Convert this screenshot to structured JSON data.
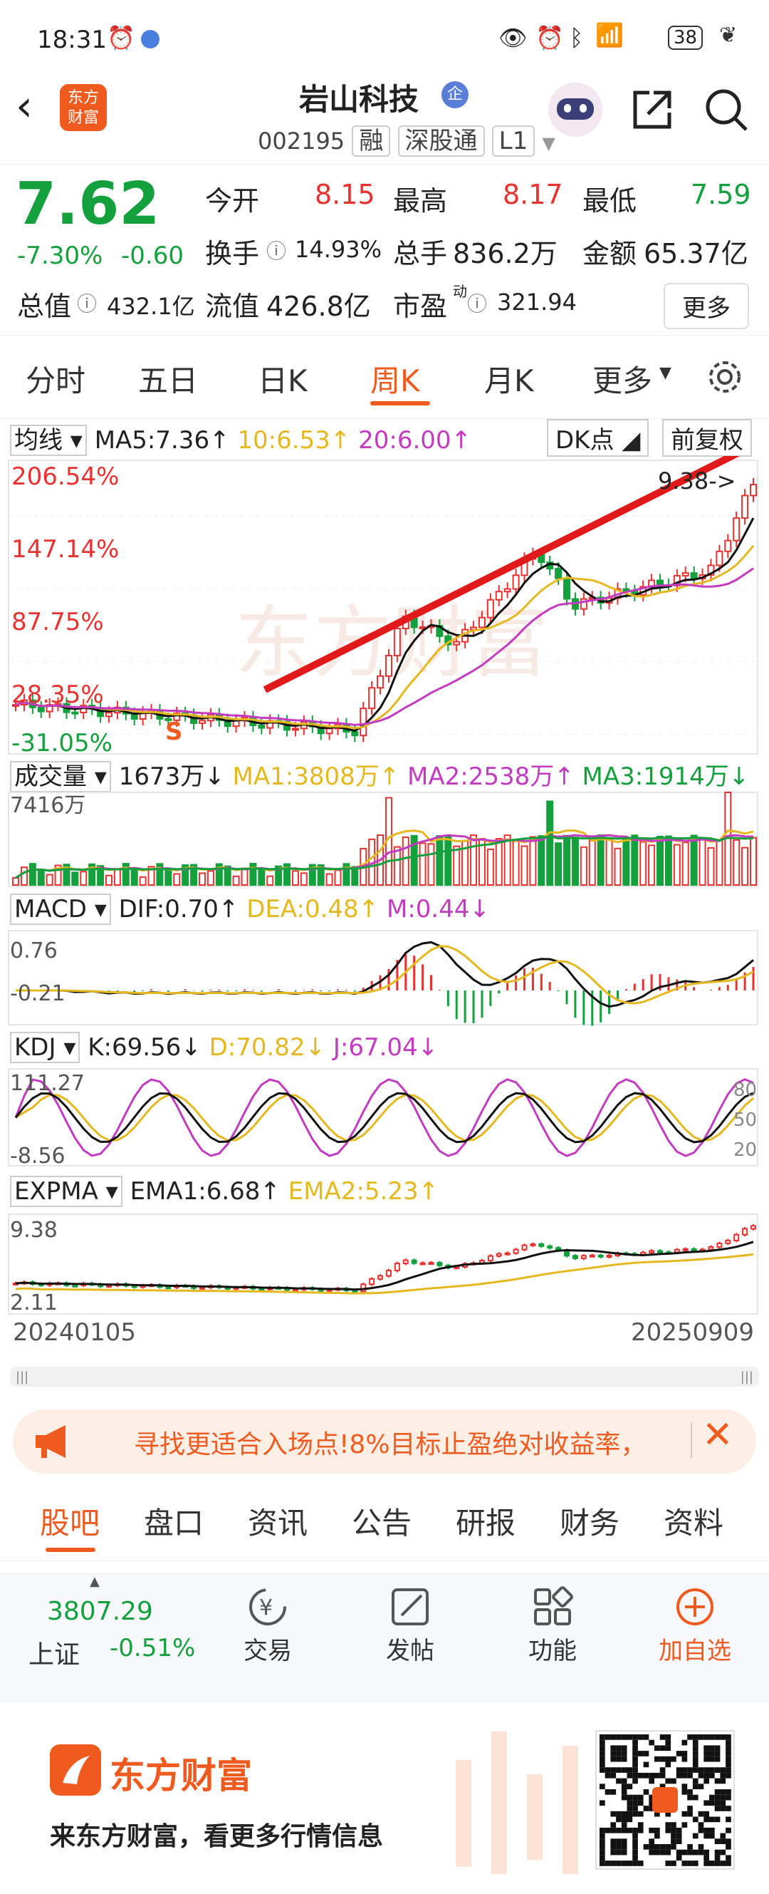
{
  "status": {
    "time": "18:31",
    "battery": "38"
  },
  "header": {
    "logo_line1": "东方",
    "logo_line2": "财富",
    "stock_name": "岩山科技",
    "badge": "企",
    "code": "002195",
    "tags": [
      "融",
      "深股通",
      "L1"
    ]
  },
  "quote": {
    "price": "7.62",
    "change_pct": "-7.30%",
    "change": "-0.60",
    "open_label": "今开",
    "open": "8.15",
    "high_label": "最高",
    "high": "8.17",
    "low_label": "最低",
    "low": "7.59",
    "turnover_label": "换手",
    "turnover": "14.93%",
    "volume_label": "总手",
    "volume": "836.2万",
    "amount_label": "金额",
    "amount": "65.37亿",
    "mcap_label": "总值",
    "mcap": "432.1亿",
    "float_label": "流值",
    "float_val": "426.8亿",
    "pe_label": "市盈",
    "pe_sup": "动",
    "pe": "321.94",
    "more": "更多"
  },
  "periods": [
    "分时",
    "五日",
    "日K",
    "周K",
    "月K",
    "更多"
  ],
  "active_period": "周K",
  "main_chart": {
    "indicator": "均线",
    "ma5": "MA5:7.36↑",
    "ma10": "10:6.53↑",
    "ma20": "20:6.00↑",
    "dk": "DK点",
    "adjust": "前复权",
    "levels": [
      "206.54%",
      "147.14%",
      "87.75%",
      "28.35%",
      "-31.05%"
    ],
    "high_mark": "9.38->",
    "s_mark": "S"
  },
  "volume": {
    "indicator": "成交量",
    "value": "1673万↓",
    "ma1": "MA1:3808万↑",
    "ma2": "MA2:2538万↑",
    "ma3": "MA3:1914万↓",
    "max": "7416万"
  },
  "macd": {
    "indicator": "MACD",
    "dif": "DIF:0.70↑",
    "dea": "DEA:0.48↑",
    "m": "M:0.44↓",
    "top": "0.76",
    "bottom": "-0.21"
  },
  "kdj": {
    "indicator": "KDJ",
    "k": "K:69.56↓",
    "d": "D:70.82↓",
    "j": "J:67.04↓",
    "top": "111.27",
    "bottom": "-8.56",
    "r80": "80",
    "r50": "50",
    "r20": "20"
  },
  "expma": {
    "indicator": "EXPMA",
    "ema1": "EMA1:6.68↑",
    "ema2": "EMA2:5.23↑",
    "top": "9.38",
    "bottom": "2.11"
  },
  "dates": {
    "start": "20240105",
    "end": "20250909"
  },
  "banner": {
    "text": "寻找更适合入场点!8%目标止盈绝对收益率，"
  },
  "tabs": [
    "股吧",
    "盘口",
    "资讯",
    "公告",
    "研报",
    "财务",
    "资料"
  ],
  "bottom": {
    "index_value": "3807.29",
    "index_name": "上证",
    "index_change": "-0.51%",
    "trade": "交易",
    "post": "发帖",
    "func": "功能",
    "add": "加自选"
  },
  "footer": {
    "brand": "东方财富",
    "slogan": "来东方财富，看更多行情信息"
  },
  "colors": {
    "up": "#e8322f",
    "down": "#14a03c",
    "accent": "#ef5a1e",
    "ma10": "#e6b820",
    "ma20": "#c23bc0"
  }
}
